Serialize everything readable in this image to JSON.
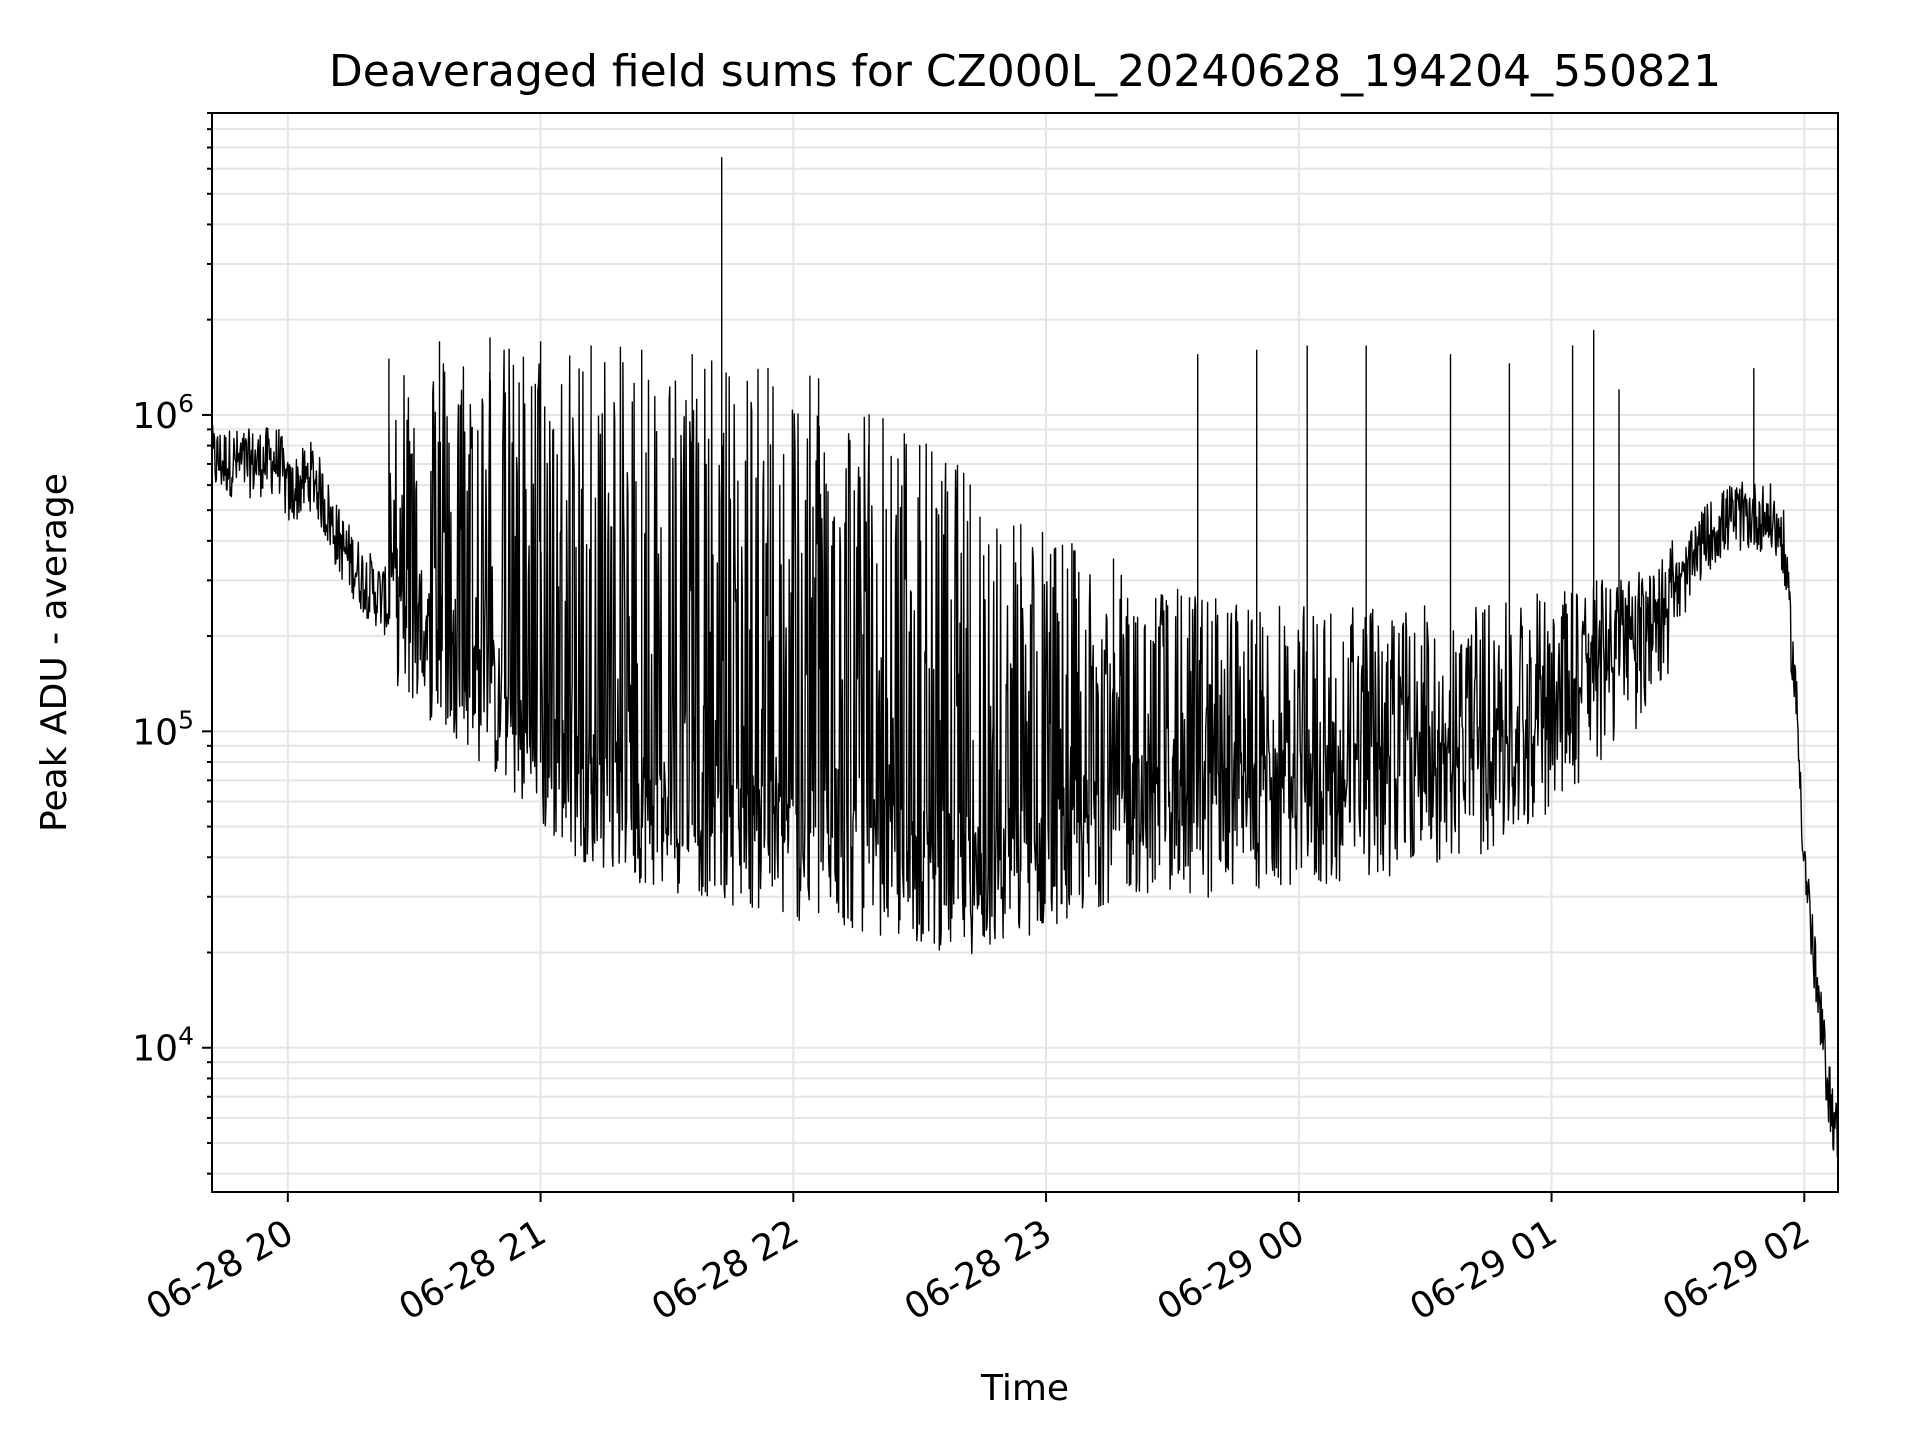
{
  "chart_data": {
    "type": "line",
    "title": "Deaveraged field sums for CZ000L_20240628_194204_550821",
    "xlabel": "Time",
    "ylabel": "Peak ADU - average",
    "yscale": "log",
    "grid": true,
    "xlim": [
      "2024-06-28 19:42",
      "2024-06-29 02:08"
    ],
    "ylim": [
      3500,
      9000000
    ],
    "x_ticks": [
      "06-28 20",
      "06-28 21",
      "06-28 22",
      "06-28 23",
      "06-29 00",
      "06-29 01",
      "06-29 02"
    ],
    "y_ticks": [
      {
        "base": "10",
        "exp": "4",
        "value": 10000
      },
      {
        "base": "10",
        "exp": "5",
        "value": 100000
      },
      {
        "base": "10",
        "exp": "6",
        "value": 1000000
      }
    ],
    "line_color": "#000000",
    "grid_color": "#e5e5e5",
    "series": [
      {
        "x": [
          "2024-06-28 19:42",
          "2024-06-28 19:50",
          "2024-06-28 19:58",
          "2024-06-28 20:00",
          "2024-06-28 20:06",
          "2024-06-28 20:12",
          "2024-06-28 20:18",
          "2024-06-28 20:24",
          "2024-06-28 20:30",
          "2024-06-28 20:36",
          "2024-06-28 20:40",
          "2024-06-28 20:46",
          "2024-06-28 20:52",
          "2024-06-28 21:00",
          "2024-06-28 21:10",
          "2024-06-28 21:20",
          "2024-06-28 21:30",
          "2024-06-28 21:40",
          "2024-06-28 21:43",
          "2024-06-28 21:50",
          "2024-06-28 22:00",
          "2024-06-28 22:10",
          "2024-06-28 22:20",
          "2024-06-28 22:30",
          "2024-06-28 22:40",
          "2024-06-28 22:50",
          "2024-06-28 23:00",
          "2024-06-28 23:10",
          "2024-06-28 23:20",
          "2024-06-28 23:30",
          "2024-06-28 23:40",
          "2024-06-28 23:50",
          "2024-06-29 00:00",
          "2024-06-29 00:10",
          "2024-06-29 00:20",
          "2024-06-29 00:30",
          "2024-06-29 00:40",
          "2024-06-29 00:50",
          "2024-06-29 01:00",
          "2024-06-29 01:10",
          "2024-06-29 01:20",
          "2024-06-29 01:30",
          "2024-06-29 01:36",
          "2024-06-29 01:42",
          "2024-06-29 01:48",
          "2024-06-29 01:52",
          "2024-06-29 01:55",
          "2024-06-29 01:58",
          "2024-06-29 02:00",
          "2024-06-29 02:03",
          "2024-06-29 02:06",
          "2024-06-29 02:08"
        ],
        "y": [
          720000,
          700000,
          720000,
          560000,
          650000,
          400000,
          300000,
          250000,
          200000,
          170000,
          160000,
          130000,
          110000,
          80000,
          65000,
          58000,
          52000,
          50000,
          48000,
          46000,
          42000,
          40000,
          38000,
          35000,
          33000,
          34000,
          40000,
          45000,
          52000,
          50000,
          50000,
          52000,
          52000,
          55000,
          58000,
          62000,
          66000,
          72000,
          95000,
          125000,
          170000,
          270000,
          400000,
          470000,
          480000,
          470000,
          400000,
          130000,
          40000,
          15000,
          7000,
          5000
        ]
      }
    ],
    "spikes": {
      "x": [
        "2024-06-28 20:24",
        "2024-06-28 20:36",
        "2024-06-28 20:48",
        "2024-06-28 21:00",
        "2024-06-28 21:12",
        "2024-06-28 21:24",
        "2024-06-28 21:36",
        "2024-06-28 21:43",
        "2024-06-28 21:54",
        "2024-06-28 22:06",
        "2024-06-28 22:18",
        "2024-06-28 22:30",
        "2024-06-28 22:42",
        "2024-06-28 22:54",
        "2024-06-28 23:16",
        "2024-06-28 23:36",
        "2024-06-28 23:50",
        "2024-06-29 00:02",
        "2024-06-29 00:16",
        "2024-06-29 00:36",
        "2024-06-29 00:50",
        "2024-06-29 01:05",
        "2024-06-29 01:10",
        "2024-06-29 01:16",
        "2024-06-29 01:48"
      ],
      "y": [
        1500000,
        1700000,
        1750000,
        1700000,
        1650000,
        1600000,
        1550000,
        6500000,
        1400000,
        1300000,
        1000000,
        800000,
        600000,
        450000,
        350000,
        1550000,
        1600000,
        1650000,
        1650000,
        1550000,
        1450000,
        1650000,
        1850000,
        1200000,
        1400000
      ]
    },
    "oscillation_band": {
      "x": [
        "2024-06-28 20:24",
        "2024-06-28 20:40",
        "2024-06-28 21:00",
        "2024-06-28 21:20",
        "2024-06-28 21:40",
        "2024-06-28 22:00",
        "2024-06-28 22:20",
        "2024-06-28 22:40",
        "2024-06-28 23:00",
        "2024-06-28 23:20",
        "2024-06-29 00:00",
        "2024-06-29 00:40",
        "2024-06-29 01:10",
        "2024-06-29 01:30"
      ],
      "top": [
        1500000,
        1700000,
        1700000,
        1650000,
        1500000,
        1400000,
        1100000,
        700000,
        450000,
        300000,
        250000,
        250000,
        300000,
        350000
      ]
    }
  }
}
